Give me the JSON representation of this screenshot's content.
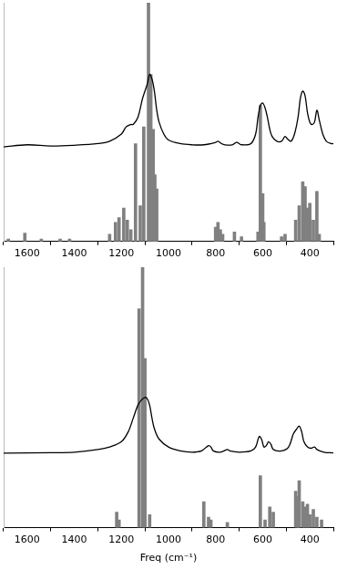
{
  "chart_data": [
    {
      "type": "bar",
      "xlim": [
        1700,
        300
      ],
      "xticks": [
        1600,
        1400,
        1200,
        1000,
        800,
        600,
        400
      ],
      "ylim": [
        0,
        100
      ],
      "tick_labels": "x",
      "grid": false,
      "series": [
        {
          "type": "line",
          "color": "#000000",
          "x": [
            1700,
            1600,
            1500,
            1400,
            1300,
            1250,
            1200,
            1180,
            1160,
            1150,
            1130,
            1110,
            1090,
            1080,
            1070,
            1060,
            1050,
            1040,
            1020,
            1000,
            950,
            900,
            850,
            800,
            790,
            775,
            760,
            730,
            710,
            690,
            650,
            630,
            620,
            610,
            600,
            590,
            580,
            570,
            560,
            540,
            520,
            505,
            495,
            480,
            465,
            450,
            440,
            430,
            420,
            410,
            400,
            390,
            380,
            370,
            360,
            345,
            330,
            310,
            300
          ],
          "values": [
            39.6,
            40.5,
            40,
            40.3,
            41,
            42,
            45,
            48,
            49,
            49,
            52,
            60,
            66,
            70,
            68,
            63,
            55,
            50,
            45,
            42.5,
            41,
            40.5,
            40.5,
            41.5,
            42,
            41,
            40.5,
            40.5,
            41.5,
            40.5,
            41,
            45,
            52,
            57,
            58,
            56,
            52,
            47,
            44,
            42,
            42,
            44,
            43,
            42,
            45,
            52,
            60,
            63,
            61,
            54,
            50,
            49,
            50,
            55,
            51,
            45,
            42,
            41,
            41
          ]
        },
        {
          "type": "bar",
          "color": "#808080",
          "x": [
            1680,
            1610,
            1540,
            1460,
            1420,
            1250,
            1225,
            1210,
            1190,
            1175,
            1160,
            1140,
            1120,
            1105,
            1085,
            1075,
            1065,
            1058,
            1050,
            800,
            790,
            780,
            770,
            720,
            690,
            620,
            610,
            600,
            595,
            520,
            505,
            460,
            445,
            430,
            420,
            410,
            400,
            385,
            370,
            360
          ],
          "values": [
            1,
            3.5,
            1,
            1,
            1,
            3,
            8,
            10,
            14,
            9,
            5,
            41,
            15,
            48,
            100,
            70,
            47,
            28,
            22,
            6,
            8,
            5,
            3,
            4,
            2,
            4,
            57,
            20,
            8,
            2,
            3,
            9,
            15,
            25,
            23,
            14,
            16,
            9,
            21,
            3
          ]
        }
      ]
    },
    {
      "type": "bar",
      "xlim": [
        1700,
        300
      ],
      "xticks": [
        1600,
        1400,
        1200,
        1000,
        800,
        600,
        400
      ],
      "ylim": [
        0,
        100
      ],
      "tick_labels": "x",
      "grid": false,
      "xlabel": "Freq (cm⁻¹)",
      "series": [
        {
          "type": "line",
          "color": "#000000",
          "x": [
            1700,
            1500,
            1400,
            1300,
            1250,
            1200,
            1170,
            1150,
            1130,
            1115,
            1100,
            1090,
            1080,
            1070,
            1060,
            1040,
            1000,
            950,
            900,
            860,
            830,
            820,
            810,
            780,
            750,
            740,
            700,
            650,
            630,
            615,
            605,
            595,
            585,
            575,
            565,
            555,
            520,
            490,
            470,
            455,
            445,
            435,
            425,
            410,
            395,
            380,
            370,
            340,
            300
          ],
          "values": [
            28.6,
            28.8,
            29,
            30,
            31,
            33,
            37,
            42,
            47,
            49,
            50,
            49.5,
            47,
            42,
            38,
            34,
            31,
            29.5,
            29,
            29.5,
            31.5,
            31,
            29.5,
            29,
            30,
            29.5,
            29,
            29.5,
            31,
            35,
            34,
            31,
            31.5,
            33,
            32,
            30,
            29.5,
            31,
            36,
            38,
            39,
            37,
            33,
            31,
            30.5,
            31,
            30,
            29,
            28.7
          ]
        },
        {
          "type": "bar",
          "color": "#808080",
          "x": [
            1220,
            1210,
            1125,
            1110,
            1100,
            1080,
            850,
            830,
            820,
            750,
            610,
            590,
            570,
            555,
            460,
            450,
            445,
            430,
            420,
            410,
            400,
            385,
            370,
            350
          ],
          "values": [
            6,
            3,
            84,
            100,
            65,
            5,
            10,
            4,
            3,
            2,
            20,
            3,
            8,
            6,
            14,
            12,
            18,
            10,
            8,
            9,
            5,
            7,
            4,
            3
          ]
        }
      ]
    }
  ]
}
